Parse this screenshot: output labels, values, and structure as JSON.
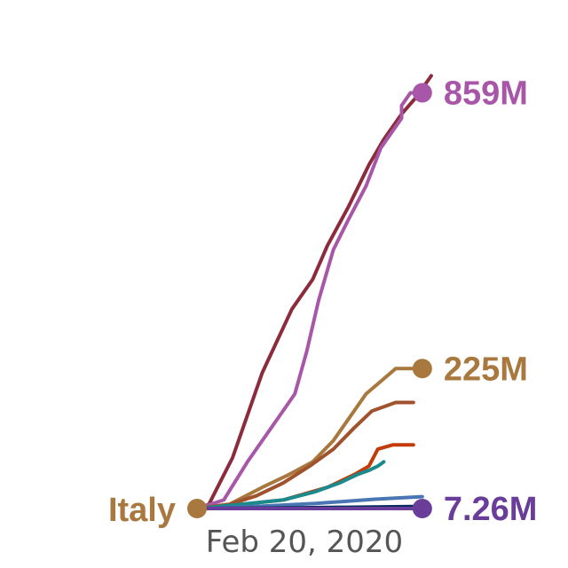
{
  "chart_data": {
    "type": "line",
    "x_label": "Feb 20, 2020",
    "start_label": "Italy",
    "start_color": "#a8783f",
    "series": [
      {
        "color": "#8b2b3c",
        "values": [
          [
            0,
            0
          ],
          [
            0.04,
            0.01
          ],
          [
            0.12,
            0.12
          ],
          [
            0.22,
            0.32
          ],
          [
            0.32,
            0.47
          ],
          [
            0.39,
            0.54
          ],
          [
            0.44,
            0.62
          ],
          [
            0.51,
            0.71
          ],
          [
            0.58,
            0.81
          ],
          [
            0.63,
            0.87
          ],
          [
            0.69,
            0.93
          ],
          [
            0.74,
            0.97
          ],
          [
            0.79,
            1.02
          ]
        ]
      },
      {
        "color": "#a857a8",
        "end_label": "859M",
        "dot": true,
        "values": [
          [
            0,
            0
          ],
          [
            0.09,
            0.02
          ],
          [
            0.17,
            0.11
          ],
          [
            0.27,
            0.21
          ],
          [
            0.33,
            0.27
          ],
          [
            0.37,
            0.37
          ],
          [
            0.41,
            0.49
          ],
          [
            0.46,
            0.61
          ],
          [
            0.51,
            0.68
          ],
          [
            0.57,
            0.76
          ],
          [
            0.62,
            0.85
          ],
          [
            0.67,
            0.9
          ],
          [
            0.69,
            0.92
          ],
          [
            0.69,
            0.95
          ],
          [
            0.72,
            0.98
          ],
          [
            0.76,
            0.98
          ]
        ]
      },
      {
        "color": "#a8783f",
        "end_label": "225M",
        "dot": true,
        "values": [
          [
            0,
            0
          ],
          [
            0.11,
            0.01
          ],
          [
            0.22,
            0.05
          ],
          [
            0.31,
            0.08
          ],
          [
            0.39,
            0.11
          ],
          [
            0.46,
            0.16
          ],
          [
            0.52,
            0.22
          ],
          [
            0.57,
            0.27
          ],
          [
            0.62,
            0.3
          ],
          [
            0.67,
            0.33
          ],
          [
            0.7,
            0.33
          ],
          [
            0.76,
            0.33
          ]
        ]
      },
      {
        "color": "#a0522d",
        "values": [
          [
            0,
            0
          ],
          [
            0.11,
            0.01
          ],
          [
            0.2,
            0.03
          ],
          [
            0.29,
            0.06
          ],
          [
            0.38,
            0.1
          ],
          [
            0.46,
            0.14
          ],
          [
            0.53,
            0.19
          ],
          [
            0.59,
            0.23
          ],
          [
            0.67,
            0.25
          ],
          [
            0.73,
            0.25
          ]
        ]
      },
      {
        "color": "#c23b08",
        "values": [
          [
            0,
            0
          ],
          [
            0.15,
            0.01
          ],
          [
            0.29,
            0.02
          ],
          [
            0.44,
            0.05
          ],
          [
            0.53,
            0.08
          ],
          [
            0.58,
            0.1
          ],
          [
            0.61,
            0.14
          ],
          [
            0.66,
            0.15
          ],
          [
            0.73,
            0.15
          ]
        ]
      },
      {
        "color": "#1a8a8c",
        "values": [
          [
            0,
            0
          ],
          [
            0.15,
            0.01
          ],
          [
            0.29,
            0.02
          ],
          [
            0.4,
            0.04
          ],
          [
            0.48,
            0.06
          ],
          [
            0.54,
            0.08
          ],
          [
            0.58,
            0.09
          ],
          [
            0.61,
            0.1
          ],
          [
            0.63,
            0.11
          ]
        ]
      },
      {
        "color": "#4a77b4",
        "values": [
          [
            0,
            0
          ],
          [
            0.2,
            0.005
          ],
          [
            0.4,
            0.012
          ],
          [
            0.6,
            0.022
          ],
          [
            0.76,
            0.028
          ]
        ]
      },
      {
        "color": "#0a2c5c",
        "values": [
          [
            0,
            0
          ],
          [
            0.25,
            0.001
          ],
          [
            0.5,
            0.003
          ],
          [
            0.76,
            0.005
          ]
        ]
      },
      {
        "color": "#6a3d9a",
        "end_label": "7.26M",
        "dot": true,
        "values": [
          [
            0,
            0
          ],
          [
            0.25,
            0.0
          ],
          [
            0.5,
            0.0
          ],
          [
            0.76,
            0.0
          ]
        ]
      }
    ]
  }
}
